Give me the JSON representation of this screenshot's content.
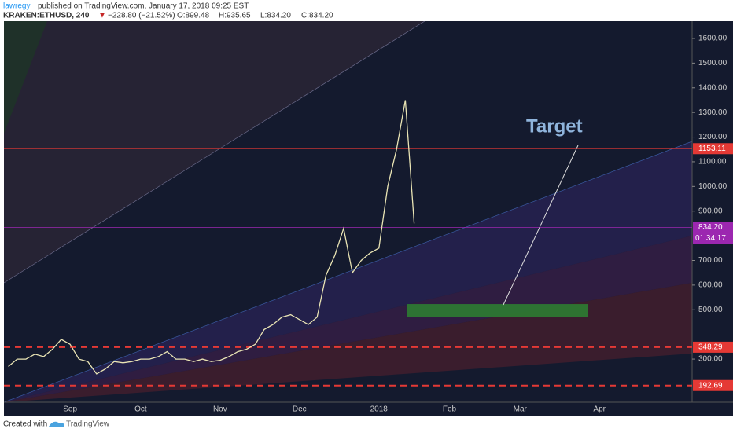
{
  "header": {
    "author": "lawregy",
    "published": "published on TradingView.com, January 17, 2018 09:25 EST",
    "symbol": "KRAKEN:ETHUSD, 240",
    "change": "−228.80 (−21.52%)",
    "open": "O:899.48",
    "high": "H:935.65",
    "low": "L:834.20",
    "close": "C:834.20"
  },
  "chart_data": {
    "type": "line",
    "color": "#e9e4b4",
    "categories": [
      null,
      null,
      null,
      null,
      null,
      null,
      null,
      "Sep",
      null,
      null,
      null,
      null,
      null,
      null,
      null,
      "Oct",
      null,
      null,
      null,
      null,
      null,
      null,
      null,
      null,
      "Nov",
      null,
      null,
      null,
      null,
      null,
      null,
      null,
      null,
      "Dec",
      null,
      null,
      null,
      null,
      null,
      null,
      null,
      null,
      "2018",
      null,
      null,
      null,
      null,
      null,
      null,
      null,
      "Feb",
      null,
      null,
      null,
      null,
      null,
      null,
      null,
      "Mar",
      null,
      null,
      null,
      null,
      null,
      null,
      null,
      null,
      "Apr",
      null,
      null,
      null,
      null,
      null,
      null,
      null,
      null,
      null,
      null
    ],
    "values": [
      270,
      300,
      300,
      320,
      310,
      340,
      380,
      360,
      300,
      290,
      240,
      260,
      290,
      285,
      290,
      300,
      300,
      310,
      330,
      300,
      300,
      290,
      300,
      290,
      295,
      310,
      330,
      340,
      360,
      420,
      440,
      470,
      480,
      460,
      440,
      470,
      640,
      720,
      830,
      650,
      700,
      730,
      750,
      1000,
      1150,
      1350,
      850,
      null,
      null,
      null,
      null,
      null,
      null,
      null,
      null,
      null,
      null,
      null,
      null,
      null,
      null,
      null,
      null,
      null,
      null,
      null,
      null,
      null,
      null,
      null,
      null,
      null,
      null,
      null,
      null,
      null,
      null,
      null
    ],
    "ylim": [
      125,
      1670
    ],
    "yticks": [
      {
        "value": 300,
        "label": "300.00"
      },
      {
        "value": 500,
        "label": "500.00"
      },
      {
        "value": 600,
        "label": "600.00"
      },
      {
        "value": 700,
        "label": "700.00"
      },
      {
        "value": 900,
        "label": "900.00"
      },
      {
        "value": 1000,
        "label": "1000.00"
      },
      {
        "value": 1100,
        "label": "1100.00"
      },
      {
        "value": 1200,
        "label": "1200.00"
      },
      {
        "value": 1300,
        "label": "1300.00"
      },
      {
        "value": 1400,
        "label": "1400.00"
      },
      {
        "value": 1500,
        "label": "1500.00"
      },
      {
        "value": 1600,
        "label": "1600.00"
      }
    ],
    "hlines": [
      {
        "value": 1153.11,
        "label": "1153.11",
        "color": "#e53935",
        "dash": false
      },
      {
        "value": 348.29,
        "label": "348.29",
        "color": "#e53935",
        "dash": true
      },
      {
        "value": 192.69,
        "label": "192.69",
        "color": "#e53935",
        "dash": true
      },
      {
        "value": 834.2,
        "label": "834.20",
        "color": "#9c27b0",
        "dash": false
      }
    ],
    "countdown": "01:34:17",
    "annotation": "Target",
    "target_zone": {
      "low": 472,
      "high": 523,
      "color": "#2e7d32"
    }
  },
  "footer": {
    "created": "Created with",
    "brand": "TradingView"
  }
}
